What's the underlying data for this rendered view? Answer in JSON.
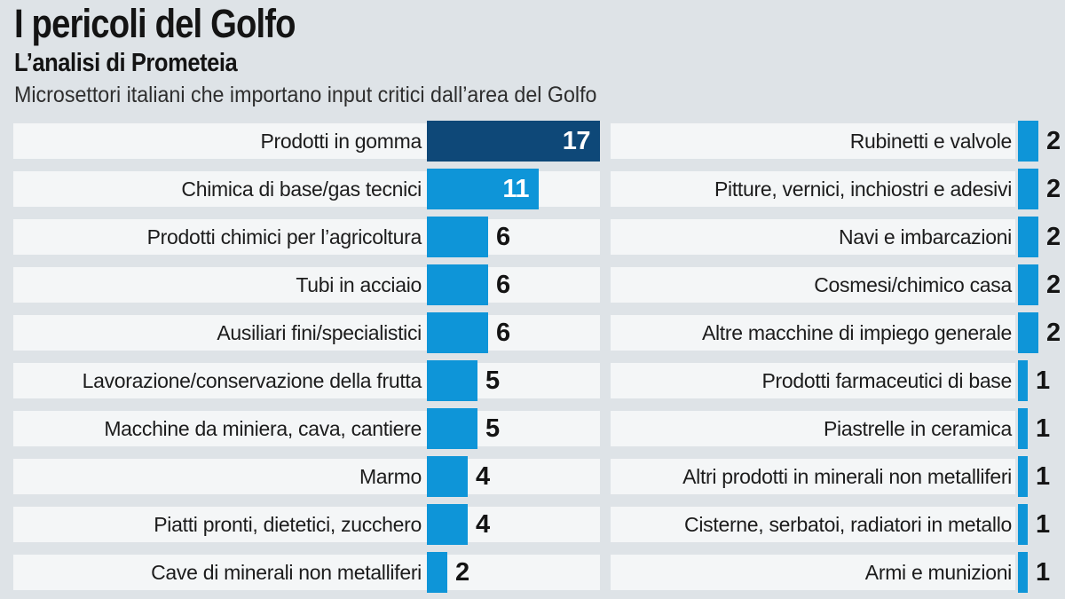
{
  "header": {
    "title": "I pericoli del Golfo",
    "subtitle": "L’analisi di Prometeia",
    "description": "Microsettori italiani che importano input critici dall’area del Golfo"
  },
  "chart_data": {
    "type": "bar",
    "orientation": "horizontal",
    "title": "I pericoli del Golfo",
    "subtitle": "L’analisi di Prometeia",
    "caption": "Microsettori italiani che importano input critici dall’area del Golfo",
    "value_range": [
      0,
      17
    ],
    "grid": false,
    "legend": false,
    "columns": [
      {
        "side": "left",
        "categories": [
          "Prodotti in gomma",
          "Chimica di base/gas tecnici",
          "Prodotti chimici per l’agricoltura",
          "Tubi in acciaio",
          "Ausiliari fini/specialistici",
          "Lavorazione/conservazione della frutta",
          "Macchine da miniera, cava, cantiere",
          "Marmo",
          "Piatti pronti, dietetici, zucchero",
          "Cave di minerali non metalliferi"
        ],
        "values": [
          17,
          11,
          6,
          6,
          6,
          5,
          5,
          4,
          4,
          2
        ]
      },
      {
        "side": "right",
        "categories": [
          "Rubinetti e valvole",
          "Pitture, vernici, inchiostri e adesivi",
          "Navi e imbarcazioni",
          "Cosmesi/chimico casa",
          "Altre macchine di impiego generale",
          "Prodotti farmaceutici di base",
          "Piastrelle in ceramica",
          "Altri prodotti in minerali non metalliferi",
          "Cisterne, serbatoi, radiatori in metallo",
          "Armi e munizioni"
        ],
        "values": [
          2,
          2,
          2,
          2,
          2,
          1,
          1,
          1,
          1,
          1
        ]
      }
    ],
    "colors": {
      "bar": "#0e95d8",
      "max_bar": "#0e4878",
      "row_band": "#f4f6f7",
      "background": "#dee3e7",
      "value_inside_text": "#ffffff",
      "value_outside_text": "#141414"
    }
  }
}
